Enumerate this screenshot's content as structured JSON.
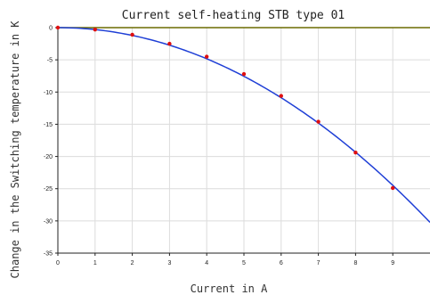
{
  "chart_data": {
    "type": "line",
    "title": "Current self-heating STB type 01",
    "xlabel": "Current in A",
    "ylabel": "Change in the Switching temperature in K",
    "xlim": [
      0,
      10
    ],
    "ylim": [
      -35,
      0
    ],
    "xticks": [
      0,
      1,
      2,
      3,
      4,
      5,
      6,
      7,
      8,
      9
    ],
    "yticks": [
      0,
      -5,
      -10,
      -15,
      -20,
      -25,
      -30,
      -35
    ],
    "grid": true,
    "legend": "none",
    "series": [
      {
        "color": "#1f3fd6",
        "marker_color": "#e01010",
        "curve": "quadratic",
        "x": [
          0,
          1,
          2,
          3,
          4,
          5,
          6,
          7,
          8,
          9
        ],
        "y": [
          0,
          -0.3,
          -1.1,
          -2.5,
          -4.5,
          -7.2,
          -10.6,
          -14.6,
          -19.4,
          -24.9
        ]
      }
    ],
    "reference_line": {
      "y": 0,
      "color": "#6b6b00"
    }
  }
}
